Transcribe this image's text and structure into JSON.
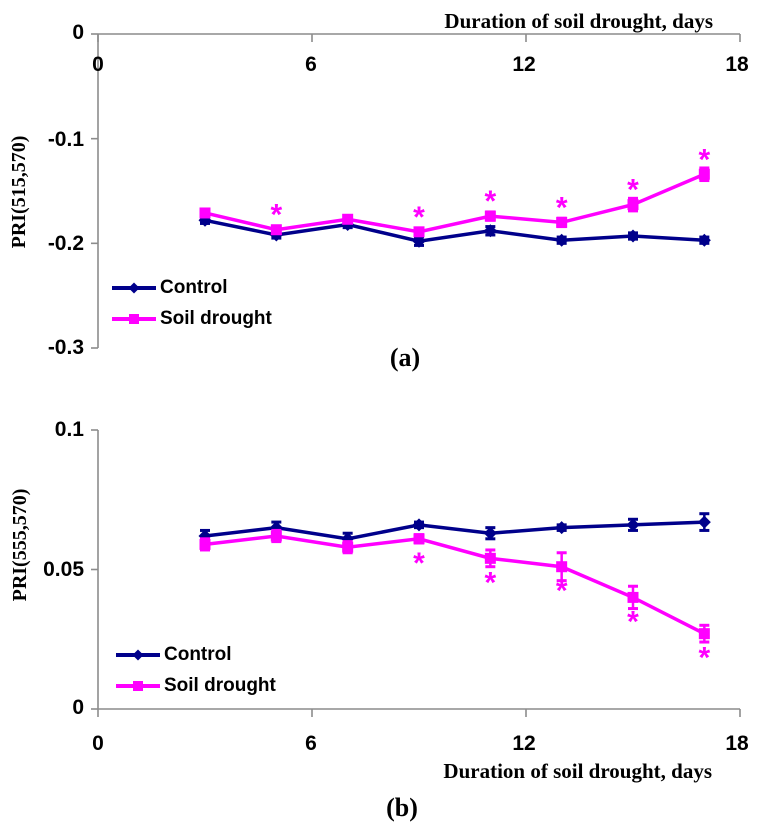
{
  "style": {
    "background": "#FFFFFF",
    "text_color": "#000000",
    "axis_color": "#8C8C8C",
    "control_color": "#00008B",
    "drought_color": "#FF00FF",
    "significance_color": "#FF00FF"
  },
  "chart_data": [
    {
      "type": "line",
      "panel": "(a)",
      "xlabel": "Duration of soil drought, days",
      "xlabel_position": "top-right",
      "ylabel": "PRI(515,570)",
      "x": [
        3,
        5,
        7,
        9,
        11,
        13,
        15,
        17
      ],
      "xlim": [
        0,
        18
      ],
      "xticks": [
        0,
        6,
        12,
        18
      ],
      "xtick_labels": [
        "0",
        "6",
        "12",
        "18"
      ],
      "ylim": [
        -0.3,
        0
      ],
      "yticks": [
        0,
        -0.1,
        -0.2,
        -0.3
      ],
      "ytick_labels": [
        "0",
        "-0.1",
        "-0.2",
        "-0.3"
      ],
      "grid": false,
      "legend_position": "inside-lower-left",
      "series": [
        {
          "name": "Control",
          "color": "#00008B",
          "marker": "diamond",
          "values": [
            -0.178,
            -0.192,
            -0.182,
            -0.198,
            -0.188,
            -0.197,
            -0.193,
            -0.197
          ],
          "errors": [
            0.003,
            0.003,
            0.003,
            0.004,
            0.004,
            0.003,
            0.003,
            0.003
          ],
          "significant_x": [],
          "significance_marker": "*",
          "significance_side": "above"
        },
        {
          "name": "Soil drought",
          "color": "#FF00FF",
          "marker": "square",
          "values": [
            -0.171,
            -0.187,
            -0.177,
            -0.189,
            -0.174,
            -0.18,
            -0.163,
            -0.134
          ],
          "errors": [
            0.003,
            0.003,
            0.003,
            0.003,
            0.004,
            0.004,
            0.006,
            0.006
          ],
          "significant_x": [
            5,
            9,
            11,
            13,
            15,
            17
          ],
          "significance_marker": "*",
          "significance_side": "above"
        }
      ]
    },
    {
      "type": "line",
      "panel": "(b)",
      "xlabel": "Duration of soil drought, days",
      "xlabel_position": "bottom-right",
      "ylabel": "PRI(555,570)",
      "x": [
        3,
        5,
        7,
        9,
        11,
        13,
        15,
        17
      ],
      "xlim": [
        0,
        18
      ],
      "xticks": [
        0,
        6,
        12,
        18
      ],
      "xtick_labels": [
        "0",
        "6",
        "12",
        "18"
      ],
      "ylim": [
        0,
        0.1
      ],
      "yticks": [
        0.1,
        0.05,
        0
      ],
      "ytick_labels": [
        "0.1",
        "0.05",
        "0"
      ],
      "grid": false,
      "legend_position": "inside-lower-left",
      "series": [
        {
          "name": "Control",
          "color": "#00008B",
          "marker": "diamond",
          "values": [
            0.062,
            0.065,
            0.061,
            0.066,
            0.063,
            0.065,
            0.066,
            0.067
          ],
          "errors": [
            0.002,
            0.002,
            0.002,
            0.001,
            0.002,
            0.001,
            0.002,
            0.003
          ],
          "significant_x": [],
          "significance_marker": "*",
          "significance_side": "below"
        },
        {
          "name": "Soil drought",
          "color": "#FF00FF",
          "marker": "square",
          "values": [
            0.059,
            0.062,
            0.058,
            0.061,
            0.054,
            0.051,
            0.04,
            0.027
          ],
          "errors": [
            0.002,
            0.002,
            0.002,
            0.0015,
            0.003,
            0.005,
            0.004,
            0.003
          ],
          "significant_x": [
            9,
            11,
            13,
            15,
            17
          ],
          "significance_marker": "*",
          "significance_side": "below"
        }
      ]
    }
  ]
}
